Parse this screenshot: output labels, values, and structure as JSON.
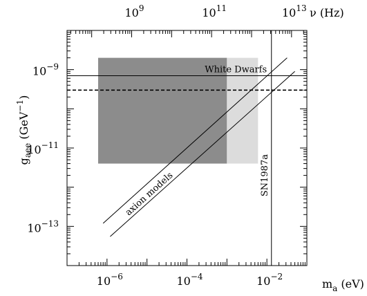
{
  "chart_data": {
    "type": "line",
    "title": "",
    "x_axis": {
      "label": "m",
      "label_subscript": "a",
      "label_unit": " (eV)",
      "scale": "log",
      "range": [
        1e-07,
        0.1
      ],
      "major_ticks": [
        {
          "base": "10",
          "exp": "−6",
          "value": 1e-06
        },
        {
          "base": "10",
          "exp": "−4",
          "value": 0.0001
        },
        {
          "base": "10",
          "exp": "−2",
          "value": 0.01
        }
      ]
    },
    "top_axis": {
      "label": "ν (Hz)",
      "scale": "log",
      "major_ticks": [
        {
          "base": "10",
          "exp": "9",
          "value": 1000000000.0
        },
        {
          "base": "10",
          "exp": "11",
          "value": 100000000000.0
        },
        {
          "base": "10",
          "exp": "13",
          "value": 10000000000000.0
        }
      ]
    },
    "y_axis": {
      "label": "g",
      "label_subscript": "aee",
      "label_unit": " (GeV",
      "label_unit_exp": "−1",
      "label_close": ")",
      "scale": "log",
      "range": [
        1e-14,
        1e-08
      ],
      "major_ticks": [
        {
          "base": "10",
          "exp": "−9",
          "value": 1e-09
        },
        {
          "base": "10",
          "exp": "−11",
          "value": 1e-11
        },
        {
          "base": "10",
          "exp": "−13",
          "value": 1e-13
        }
      ]
    },
    "regions": [
      {
        "name": "dark region",
        "x": [
          6e-07,
          0.001
        ],
        "y": [
          4e-12,
          2e-09
        ],
        "color": "#8c8c8c"
      },
      {
        "name": "light region",
        "x": [
          0.001,
          0.006
        ],
        "y": [
          4e-12,
          2e-09
        ],
        "color": "#dcdcdc"
      }
    ],
    "lines": [
      {
        "name": "White Dwarfs",
        "kind": "horizontal",
        "y": 7e-10,
        "style": "solid"
      },
      {
        "name": "dashed limit",
        "kind": "horizontal",
        "y": 3e-10,
        "style": "dashed"
      },
      {
        "name": "SN1987a",
        "kind": "vertical",
        "x": 0.013,
        "style": "solid"
      },
      {
        "name": "axion models upper",
        "kind": "segment",
        "x": [
          8e-07,
          0.032
        ],
        "y": [
          1.2e-13,
          2e-09
        ],
        "style": "solid"
      },
      {
        "name": "axion models lower",
        "kind": "segment",
        "x": [
          1.2e-06,
          0.05
        ],
        "y": [
          5.5e-14,
          9e-10
        ],
        "style": "solid"
      }
    ],
    "annotations": {
      "white_dwarfs": "White Dwarfs",
      "sn1987a": "SN1987a",
      "axion_models": "axion models"
    },
    "grid": false,
    "legend": "none"
  }
}
